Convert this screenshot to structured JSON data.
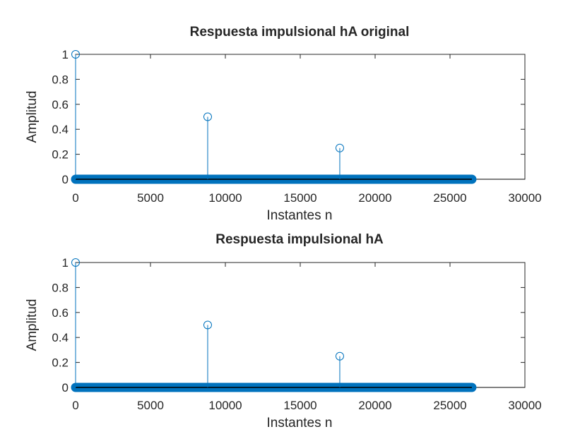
{
  "colors": {
    "stem": "#0072BD",
    "axis": "#262626",
    "baseline": "#000000",
    "background": "#ffffff"
  },
  "chart_data": [
    {
      "type": "stem",
      "title": "Respuesta impulsional hA original",
      "xlabel": "Instantes n",
      "ylabel": "Amplitud",
      "xlim": [
        0,
        30000
      ],
      "ylim": [
        0,
        1
      ],
      "xticks": [
        0,
        5000,
        10000,
        15000,
        20000,
        25000,
        30000
      ],
      "xticklabels": [
        "0",
        "5000",
        "10000",
        "15000",
        "20000",
        "25000",
        "30000"
      ],
      "yticks": [
        0,
        0.2,
        0.4,
        0.6,
        0.8,
        1
      ],
      "yticklabels": [
        "0",
        "0.2",
        "0.4",
        "0.6",
        "0.8",
        "1"
      ],
      "grid": false,
      "sample_range": [
        0,
        26460
      ],
      "impulses": [
        {
          "n": 0,
          "value": 1
        },
        {
          "n": 8820,
          "value": 0.5
        },
        {
          "n": 17640,
          "value": 0.25
        }
      ],
      "other_samples_value": 0
    },
    {
      "type": "stem",
      "title": "Respuesta impulsional hA",
      "xlabel": "Instantes n",
      "ylabel": "Amplitud",
      "xlim": [
        0,
        30000
      ],
      "ylim": [
        0,
        1
      ],
      "xticks": [
        0,
        5000,
        10000,
        15000,
        20000,
        25000,
        30000
      ],
      "xticklabels": [
        "0",
        "5000",
        "10000",
        "15000",
        "20000",
        "25000",
        "30000"
      ],
      "yticks": [
        0,
        0.2,
        0.4,
        0.6,
        0.8,
        1
      ],
      "yticklabels": [
        "0",
        "0.2",
        "0.4",
        "0.6",
        "0.8",
        "1"
      ],
      "grid": false,
      "sample_range": [
        0,
        26460
      ],
      "impulses": [
        {
          "n": 0,
          "value": 1
        },
        {
          "n": 8820,
          "value": 0.5
        },
        {
          "n": 17640,
          "value": 0.25
        }
      ],
      "other_samples_value": 0
    }
  ]
}
